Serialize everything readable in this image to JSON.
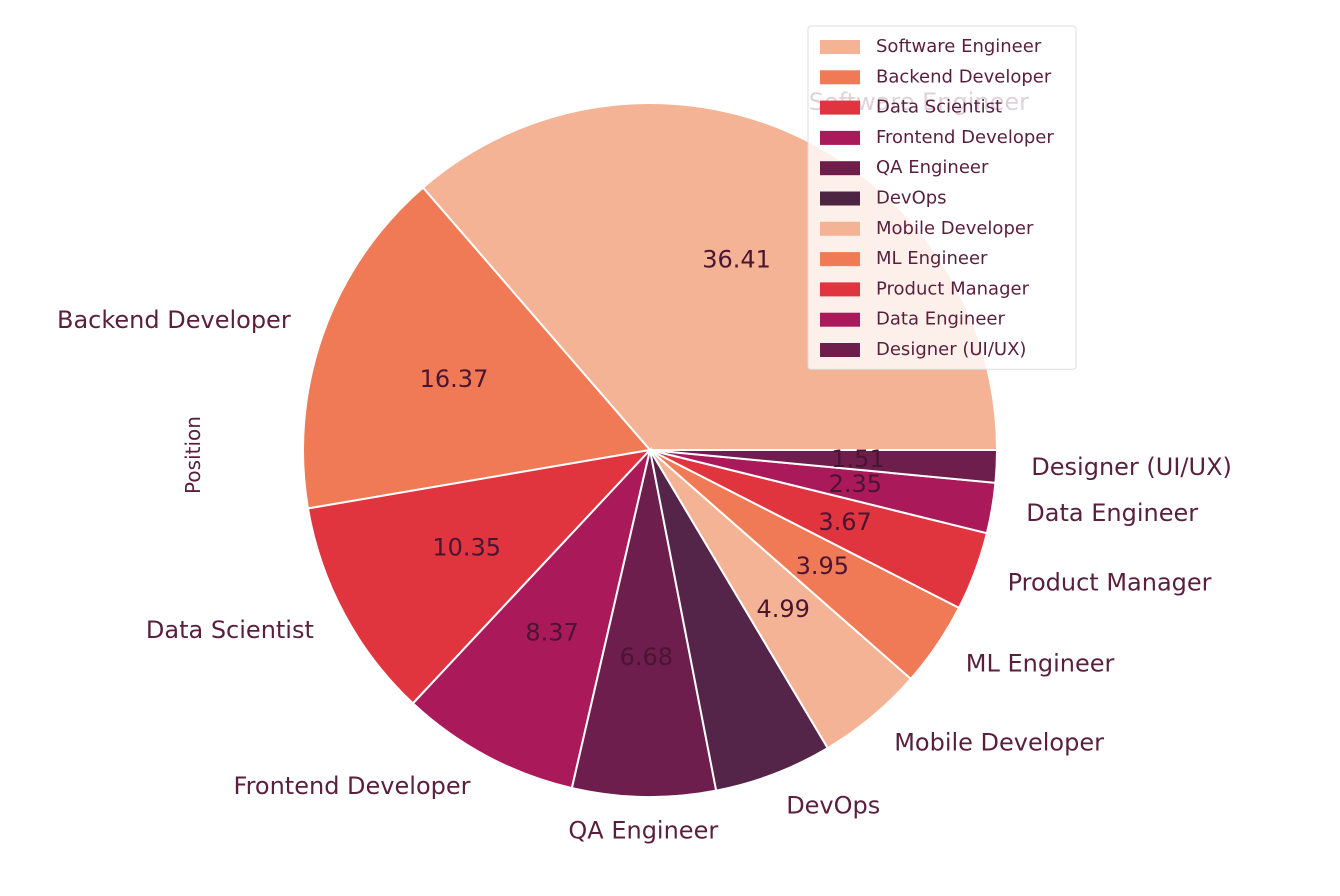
{
  "chart_data": {
    "type": "pie",
    "ylabel": "Position",
    "categories": [
      "Software Engineer",
      "Backend Developer",
      "Data Scientist",
      "Frontend Developer",
      "QA Engineer",
      "DevOps",
      "Mobile Developer",
      "ML Engineer",
      "Product Manager",
      "Data Engineer",
      "Designer (UI/UX)"
    ],
    "values": [
      36.41,
      16.37,
      10.35,
      8.37,
      6.68,
      5.51,
      4.99,
      3.95,
      3.67,
      2.35,
      1.51
    ],
    "value_labels": [
      "36.41",
      "16.37",
      "10.35",
      "8.37",
      "6.68",
      "",
      "4.99",
      "3.95",
      "3.67",
      "2.35",
      "1.51"
    ],
    "colors": [
      "#f3b394",
      "#f07a56",
      "#e0343f",
      "#aa1a5b",
      "#6d1e4c",
      "#552449",
      "#f3b394",
      "#f07a56",
      "#e0343f",
      "#aa1a5b",
      "#6d1e4c"
    ],
    "start_angle_deg": 0,
    "direction": "counterclockwise",
    "legend": {
      "placement": "upper-right",
      "entries": [
        "Software Engineer",
        "Backend Developer",
        "Data Scientist",
        "Frontend Developer",
        "QA Engineer",
        "DevOps",
        "Mobile Developer",
        "ML Engineer",
        "Product Manager",
        "Data Engineer",
        "Designer (UI/UX)"
      ],
      "colors": [
        "#f3b394",
        "#f07a56",
        "#e0343f",
        "#aa1a5b",
        "#6d1e4c",
        "#4e2443",
        "#f3b394",
        "#f07a56",
        "#e0343f",
        "#aa1a5b",
        "#6d1e4c"
      ]
    }
  }
}
